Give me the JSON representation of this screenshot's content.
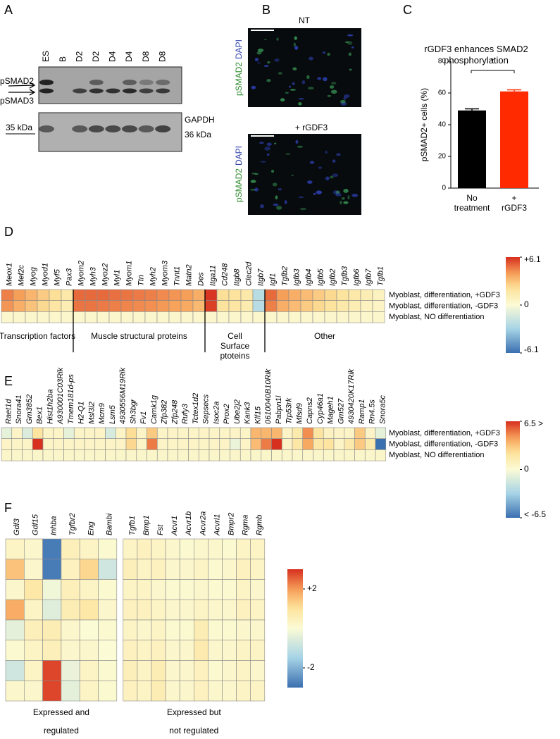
{
  "panel_a": {
    "letter": "A",
    "lanes": [
      "ES",
      "B",
      "D2",
      "D2",
      "D4",
      "D4",
      "D8",
      "D8"
    ],
    "psmad2": "pSMAD2",
    "psmad3": "pSMAD3",
    "gapdh": "GAPDH",
    "kda35": "35 kDa",
    "kda36": "36 kDa"
  },
  "panel_b": {
    "letter": "B",
    "conditions": [
      "NT",
      "+ rGDF3"
    ],
    "stain1": "pSMAD2",
    "stain2": "DAPI"
  },
  "chart_data": [
    {
      "type": "bar",
      "letter": "C",
      "title": "rGDF3 enhances SMAD2 phosphorylation",
      "ylabel": "pSMAD2+ cells (%)",
      "categories": [
        "No treatment",
        "+ rGDF3"
      ],
      "values": [
        49,
        61
      ],
      "errors": [
        1,
        1
      ],
      "colors": [
        "#000000",
        "#ff2a00"
      ],
      "ylim": [
        0,
        80
      ],
      "yticks": [
        0,
        20,
        40,
        60,
        80
      ],
      "annotation": "*"
    },
    {
      "type": "heatmap",
      "letter": "D",
      "rows": [
        "Myoblast, differentiation, +GDF3",
        "Myoblast, differentiation, -GDF3",
        "Myoblast, NO differentiation"
      ],
      "clim": [
        -6.1,
        6.1
      ],
      "colorbar_ticks": [
        {
          "value": 6.1,
          "label": "+6.1"
        },
        0,
        {
          "value": -6.1,
          "label": "-6.1"
        }
      ],
      "groups": [
        {
          "label": "Transcription factors",
          "columns": [
            "Meox1",
            "Mef2c",
            "Myog",
            "Myod1",
            "Myf5",
            "Pax3"
          ],
          "values": [
            [
              4.6,
              4.0,
              3.4,
              2.8,
              2.2,
              1.6
            ],
            [
              4.2,
              3.6,
              3.0,
              2.4,
              1.8,
              1.2
            ],
            [
              0.4,
              0.4,
              0.4,
              0.4,
              0.4,
              0.4
            ]
          ]
        },
        {
          "label": "Muscle structural proteins",
          "columns": [
            "Myom2",
            "Myh3",
            "Myoz2",
            "Myl1",
            "Myom1",
            "Ttn",
            "Myh2",
            "Myom3",
            "Tnnt1",
            "Matn2",
            "Des"
          ],
          "values": [
            [
              5.0,
              5.0,
              5.0,
              4.9,
              4.8,
              4.7,
              4.6,
              4.4,
              4.2,
              4.0,
              3.6
            ],
            [
              4.8,
              4.8,
              4.7,
              4.6,
              4.5,
              4.4,
              4.3,
              4.1,
              3.9,
              3.7,
              3.3
            ],
            [
              0.4,
              0.4,
              0.4,
              0.4,
              0.4,
              0.4,
              0.4,
              0.4,
              0.4,
              0.4,
              0.4
            ]
          ]
        },
        {
          "label": "Cell Surface ptoteins",
          "columns": [
            "Itga11",
            "Cd248",
            "Itgb8",
            "Clec2d",
            "Itgb7"
          ],
          "values": [
            [
              6.0,
              2.2,
              2.0,
              1.6,
              -2.4
            ],
            [
              5.8,
              2.0,
              1.8,
              1.4,
              -2.4
            ],
            [
              0.4,
              0.4,
              0.4,
              0.4,
              0.4
            ]
          ]
        },
        {
          "label": "Other",
          "columns": [
            "Igf1",
            "Tgfb2",
            "Igfb3",
            "Igfb4",
            "Igfb5",
            "Igfb2",
            "Tgfb3",
            "Igfb6",
            "Igfb7",
            "Tgfb1"
          ],
          "values": [
            [
              5.0,
              4.0,
              3.6,
              3.2,
              2.8,
              2.4,
              2.0,
              1.6,
              1.2,
              0.8
            ],
            [
              4.6,
              3.6,
              3.2,
              2.8,
              2.4,
              2.0,
              1.6,
              1.2,
              0.8,
              0.6
            ],
            [
              0.4,
              0.4,
              0.4,
              0.4,
              0.4,
              0.4,
              0.4,
              0.4,
              0.4,
              0.4
            ]
          ]
        }
      ]
    },
    {
      "type": "heatmap",
      "letter": "E",
      "rows": [
        "Myoblast, differentiation, +GDF3",
        "Myoblast, differentiation, -GDF3",
        "Myoblast, NO differentiation"
      ],
      "clim": [
        -6.5,
        6.5
      ],
      "colorbar_ticks": [
        {
          "value": 6.5,
          "label": "6.5 >"
        },
        0,
        {
          "value": -6.5,
          "label": "< -6.5"
        }
      ],
      "columns": [
        "Raet1d",
        "Snora41",
        "Gm3852",
        "Bex1",
        "Hist1h2ba",
        "A930001C03Rik",
        "Tmem181d-ps",
        "H2-Q1",
        "Msl3l2",
        "Mcm9",
        "Lsm5",
        "4930556M19Rik",
        "Sh3bgr",
        "Fv1",
        "Camk1g",
        "Zfp382",
        "Zfp248",
        "Rufy3",
        "Tctex1d2",
        "Sepsecs",
        "Isoc2a",
        "Prox2",
        "Ube2j2",
        "Kank3",
        "Klf15",
        "0610040B10Rik",
        "Pabpn1l",
        "Trp53rk",
        "Mfsd9",
        "Capns2",
        "Cyp46a1",
        "Mageh1",
        "Gm527",
        "4930420K17Rik",
        "Ramp1",
        "Rn4.5s",
        "Snora5c"
      ],
      "values": [
        [
          -0.8,
          0.6,
          -1.2,
          2.0,
          0.6,
          0.6,
          -0.8,
          0.6,
          0.6,
          0.6,
          -1.4,
          0.6,
          2.4,
          0.6,
          3.0,
          0.6,
          0.6,
          0.6,
          0.6,
          0.6,
          0.6,
          0.6,
          0.6,
          0.6,
          3.6,
          3.6,
          3.6,
          0.6,
          1.6,
          4.6,
          2.0,
          0.8,
          0.6,
          0.6,
          3.0,
          0.6,
          -0.8
        ],
        [
          0.6,
          0.6,
          0.6,
          6.5,
          0.6,
          0.6,
          0.6,
          0.6,
          0.6,
          0.6,
          0.6,
          0.6,
          2.6,
          0.6,
          5.0,
          0.6,
          0.6,
          0.6,
          0.6,
          0.6,
          0.6,
          0.6,
          -0.6,
          0.6,
          3.4,
          5.0,
          6.5,
          0.6,
          1.8,
          4.0,
          1.8,
          2.0,
          0.6,
          1.6,
          3.0,
          1.6,
          -6.5
        ],
        [
          0.5,
          0.5,
          0.5,
          0.5,
          0.5,
          0.5,
          0.5,
          0.5,
          0.5,
          0.5,
          0.5,
          0.5,
          0.5,
          0.5,
          0.5,
          0.5,
          0.5,
          0.5,
          0.5,
          0.5,
          0.5,
          0.5,
          0.5,
          0.5,
          0.5,
          0.5,
          0.5,
          0.5,
          0.5,
          0.5,
          0.5,
          0.5,
          0.5,
          0.5,
          0.5,
          0.5,
          0.5
        ]
      ]
    },
    {
      "type": "heatmap",
      "letter": "F",
      "clim": [
        -3,
        3
      ],
      "colorbar_ticks": [
        {
          "value": 2,
          "label": "+2"
        },
        -2
      ],
      "groups": [
        {
          "label": "Expressed and regulated",
          "columns": [
            "Gdf3",
            "Gdf15",
            "Inhba",
            "Tgfbr2",
            "Eng",
            "Bambi"
          ],
          "values": [
            [
              0.3,
              0.2,
              -2.8,
              0.5,
              0.3,
              0.1
            ],
            [
              1.5,
              0.2,
              -2.8,
              0.4,
              1.2,
              -0.8
            ],
            [
              0.2,
              0.8,
              -0.2,
              0.5,
              0.3,
              0.1
            ],
            [
              1.8,
              0.3,
              -0.5,
              0.6,
              0.8,
              0.2
            ],
            [
              -0.4,
              0.5,
              0.6,
              0.2,
              0,
              0.1
            ],
            [
              0.1,
              0.3,
              0.5,
              0.2,
              0.2,
              0
            ],
            [
              -0.8,
              0.3,
              2.8,
              -0.3,
              0.3,
              0.1
            ],
            [
              0.2,
              0.2,
              2.8,
              -0.4,
              0.3,
              0.1
            ]
          ]
        },
        {
          "label": "Expressed but not regulated",
          "columns": [
            "Tgfb1",
            "Bmp1",
            "Fst",
            "Acvr1",
            "Acvr1b",
            "Acvr2a",
            "Acvrl1",
            "Bmpr2",
            "Rgma",
            "Rgmb"
          ],
          "values": [
            [
              0.3,
              0.4,
              0.3,
              0.2,
              0.1,
              0.2,
              0.2,
              0.1,
              0.3,
              0.3
            ],
            [
              0.5,
              0.3,
              0.4,
              0.2,
              0.2,
              0.3,
              0.1,
              0.2,
              0.4,
              0.3
            ],
            [
              0.3,
              0.3,
              0.2,
              0.1,
              0.1,
              0.2,
              0.1,
              0.1,
              0.3,
              0.2
            ],
            [
              0.4,
              0.4,
              0.3,
              0.2,
              0.2,
              0.3,
              0.2,
              0.2,
              0.4,
              0.3
            ],
            [
              0.3,
              0.2,
              0.3,
              0.1,
              0.1,
              0.6,
              0.1,
              0.1,
              0.2,
              0.2
            ],
            [
              0.4,
              0.3,
              0.4,
              0.2,
              0.2,
              0.7,
              0.2,
              0.2,
              0.3,
              0.3
            ],
            [
              0.5,
              0.3,
              0.6,
              0.2,
              0.2,
              0.4,
              0.1,
              0.2,
              0.3,
              0.2
            ],
            [
              0.4,
              0.3,
              0.6,
              0.2,
              0.2,
              0.4,
              0.2,
              0.2,
              0.3,
              0.3
            ]
          ]
        }
      ]
    }
  ]
}
